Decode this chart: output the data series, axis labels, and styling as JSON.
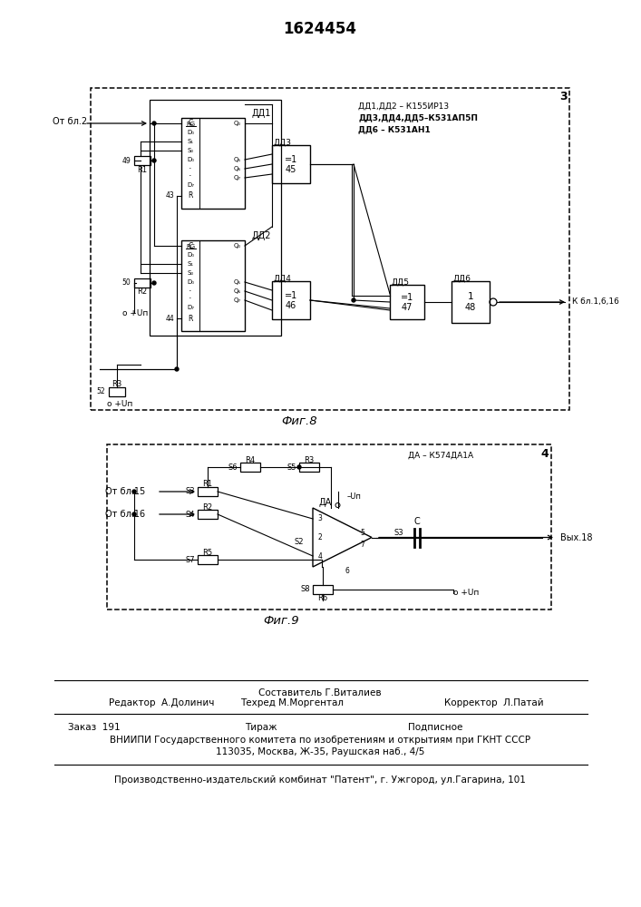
{
  "title": "1624454",
  "bg_color": "#ffffff",
  "fig8_label": "Фиг.8",
  "fig9_label": "Фиг.9",
  "fig8_legend": [
    "ДД1,ДД2 – К155ИР13",
    "ДД3,ДД4,ДД5–К531АП5П",
    "ДД6 – К531АН1"
  ],
  "fig9_legend": "ДА – К574ДА1А",
  "footer": {
    "sestavitel": "Составитель Г.Виталиев",
    "redaktor": "Редактор  А.Долинич",
    "tehred": "Техред М.Моргентал",
    "korrektor": "Корректор  Л.Патай",
    "zakaz": "Заказ  191",
    "tirazh": "Тираж",
    "podpisnoe": "Подписное",
    "vniipи1": "ВНИИПИ Государственного комитета по изобретениям и открытиям при ГКНТ СССР",
    "vniipи2": "113035, Москва, Ж-35, Раушская наб., 4/5",
    "patent": "Производственно-издательский комбинат \"Патент\", г. Ужгород, ул.Гагарина, 101"
  }
}
